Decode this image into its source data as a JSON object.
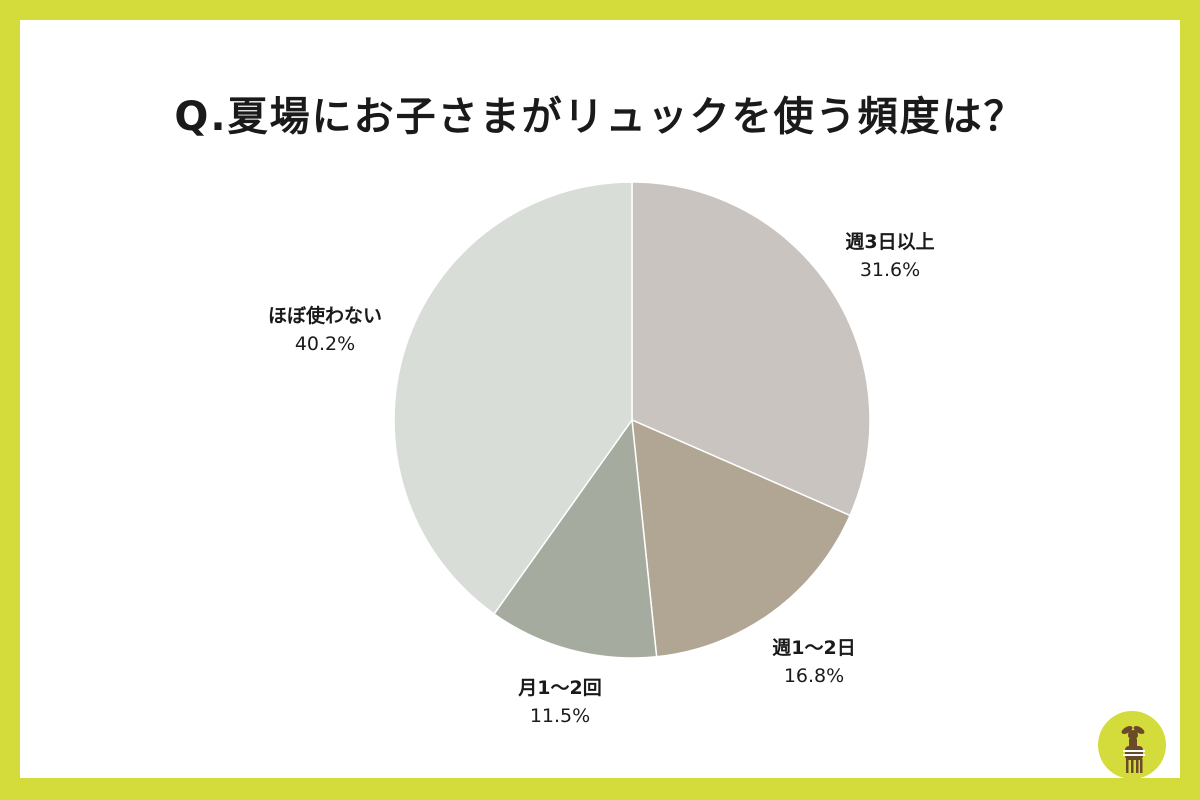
{
  "title": "Q.夏場にお子さまがリュックを使う頻度は？",
  "chart_data": {
    "type": "pie",
    "title": "Q.夏場にお子さまがリュックを使う頻度は？",
    "start": "12 o'clock",
    "direction": "clockwise",
    "slices": [
      {
        "label": "週3日以上",
        "value": 31.6,
        "value_label": "31.6%",
        "color": "#c9c4bf"
      },
      {
        "label": "週1～2日",
        "value": 16.8,
        "value_label": "16.8%",
        "color": "#b1a594"
      },
      {
        "label": "月1～2回",
        "value": 11.5,
        "value_label": "11.5%",
        "color": "#a6ab9f"
      },
      {
        "label": "ほぼ使わない",
        "value": 40.2,
        "value_label": "40.2%",
        "color": "#d8ddd8"
      }
    ]
  },
  "colors": {
    "border": "#d4dc3c",
    "background": "#ffffff",
    "logo_circle": "#d4dc3c",
    "logo_figure": "#6b4a2a"
  },
  "logo": {
    "icon": "fawn-icon"
  }
}
